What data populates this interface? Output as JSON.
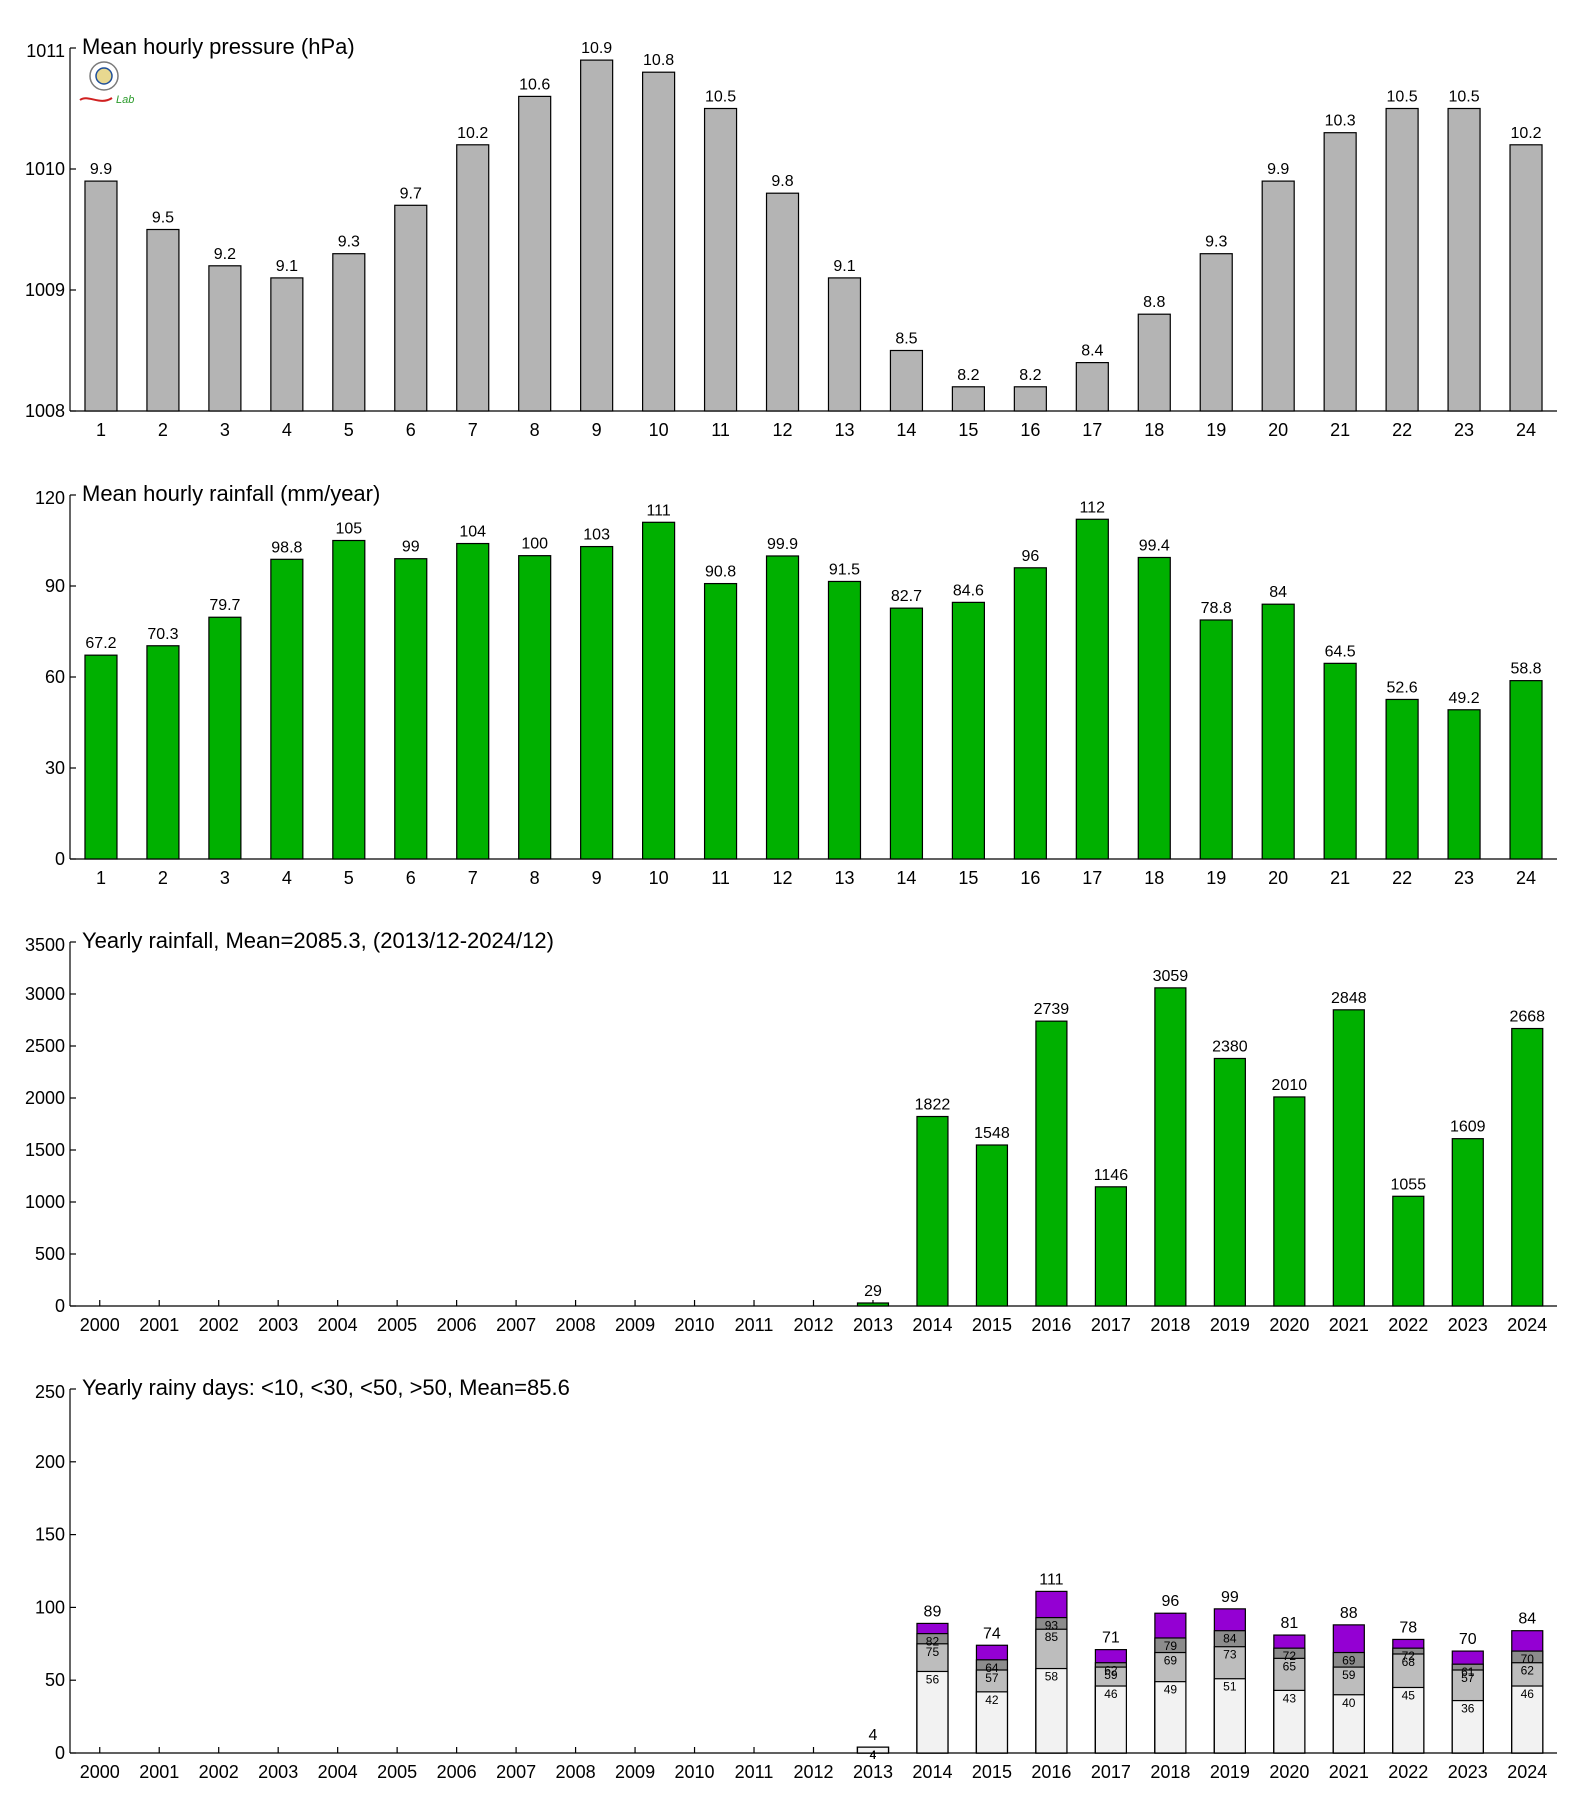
{
  "logo": {
    "text": "Lab"
  },
  "colors": {
    "pressure_bar": "#b4b4b4",
    "rain_bar": "#00b000",
    "days_lt10": "#f2f2f2",
    "days_lt30": "#bdbdbd",
    "days_lt50": "#8c8c8c",
    "days_gt50": "#9400d3"
  },
  "chart_data": [
    {
      "type": "bar",
      "title": "Mean hourly pressure (hPa)",
      "categories": [
        "1",
        "2",
        "3",
        "4",
        "5",
        "6",
        "7",
        "8",
        "9",
        "10",
        "11",
        "12",
        "13",
        "14",
        "15",
        "16",
        "17",
        "18",
        "19",
        "20",
        "21",
        "22",
        "23",
        "24"
      ],
      "values": [
        1009.9,
        1009.5,
        1009.2,
        1009.1,
        1009.3,
        1009.7,
        1010.2,
        1010.6,
        1010.9,
        1010.8,
        1010.5,
        1009.8,
        1009.1,
        1008.5,
        1008.2,
        1008.2,
        1008.4,
        1008.8,
        1009.3,
        1009.9,
        1010.3,
        1010.5,
        1010.5,
        1010.2
      ],
      "value_labels": [
        "9.9",
        "9.5",
        "9.2",
        "9.1",
        "9.3",
        "9.7",
        "10.2",
        "10.6",
        "10.9",
        "10.8",
        "10.5",
        "9.8",
        "9.1",
        "8.5",
        "8.2",
        "8.2",
        "8.4",
        "8.8",
        "9.3",
        "9.9",
        "10.3",
        "10.5",
        "10.5",
        "10.2"
      ],
      "ylim": [
        1008,
        1011
      ],
      "yticks": [
        1008,
        1009,
        1010,
        1011
      ],
      "xlabel": "",
      "ylabel": "",
      "grid": false
    },
    {
      "type": "bar",
      "title": "Mean hourly rainfall (mm/year)",
      "categories": [
        "1",
        "2",
        "3",
        "4",
        "5",
        "6",
        "7",
        "8",
        "9",
        "10",
        "11",
        "12",
        "13",
        "14",
        "15",
        "16",
        "17",
        "18",
        "19",
        "20",
        "21",
        "22",
        "23",
        "24"
      ],
      "values": [
        67.2,
        70.3,
        79.7,
        98.8,
        105,
        99,
        104,
        100,
        103,
        111,
        90.8,
        99.9,
        91.5,
        82.7,
        84.6,
        96,
        112,
        99.4,
        78.8,
        84,
        64.5,
        52.6,
        49.2,
        58.8
      ],
      "value_labels": [
        "67.2",
        "70.3",
        "79.7",
        "98.8",
        "105",
        "99",
        "104",
        "100",
        "103",
        "111",
        "90.8",
        "99.9",
        "91.5",
        "82.7",
        "84.6",
        "96",
        "112",
        "99.4",
        "78.8",
        "84",
        "64.5",
        "52.6",
        "49.2",
        "58.8"
      ],
      "ylim": [
        0,
        120
      ],
      "yticks": [
        0,
        30,
        60,
        90,
        120
      ],
      "xlabel": "",
      "ylabel": "",
      "grid": false
    },
    {
      "type": "bar",
      "title": "Yearly rainfall, Mean=2085.3, (2013/12-2024/12)",
      "categories": [
        "2000",
        "2001",
        "2002",
        "2003",
        "2004",
        "2005",
        "2006",
        "2007",
        "2008",
        "2009",
        "2010",
        "2011",
        "2012",
        "2013",
        "2014",
        "2015",
        "2016",
        "2017",
        "2018",
        "2019",
        "2020",
        "2021",
        "2022",
        "2023",
        "2024"
      ],
      "values": [
        null,
        null,
        null,
        null,
        null,
        null,
        null,
        null,
        null,
        null,
        null,
        null,
        null,
        29,
        1822,
        1548,
        2739,
        1146,
        3059,
        2380,
        2010,
        2848,
        1055,
        1609,
        2668
      ],
      "value_labels": [
        "",
        "",
        "",
        "",
        "",
        "",
        "",
        "",
        "",
        "",
        "",
        "",
        "",
        "29",
        "1822",
        "1548",
        "2739",
        "1146",
        "3059",
        "2380",
        "2010",
        "2848",
        "1055",
        "1609",
        "2668"
      ],
      "ylim": [
        0,
        3500
      ],
      "yticks": [
        0,
        500,
        1000,
        1500,
        2000,
        2500,
        3000,
        3500
      ],
      "xlabel": "",
      "ylabel": "",
      "grid": false
    },
    {
      "type": "bar",
      "stacked": true,
      "title": "Yearly rainy days: <10, <30, <50, >50, Mean=85.6",
      "categories": [
        "2000",
        "2001",
        "2002",
        "2003",
        "2004",
        "2005",
        "2006",
        "2007",
        "2008",
        "2009",
        "2010",
        "2011",
        "2012",
        "2013",
        "2014",
        "2015",
        "2016",
        "2017",
        "2018",
        "2019",
        "2020",
        "2021",
        "2022",
        "2023",
        "2024"
      ],
      "cumulative": {
        "lt10": [
          null,
          null,
          null,
          null,
          null,
          null,
          null,
          null,
          null,
          null,
          null,
          null,
          null,
          4,
          56,
          42,
          58,
          46,
          49,
          51,
          43,
          40,
          45,
          36,
          46
        ],
        "lt30": [
          null,
          null,
          null,
          null,
          null,
          null,
          null,
          null,
          null,
          null,
          null,
          null,
          null,
          4,
          75,
          57,
          85,
          59,
          69,
          73,
          65,
          59,
          68,
          57,
          62
        ],
        "lt50": [
          null,
          null,
          null,
          null,
          null,
          null,
          null,
          null,
          null,
          null,
          null,
          null,
          null,
          4,
          82,
          64,
          93,
          62,
          79,
          84,
          72,
          69,
          72,
          61,
          70
        ],
        "total": [
          null,
          null,
          null,
          null,
          null,
          null,
          null,
          null,
          null,
          null,
          null,
          null,
          null,
          4,
          89,
          74,
          111,
          71,
          96,
          99,
          81,
          88,
          78,
          70,
          84
        ]
      },
      "ylim": [
        0,
        250
      ],
      "yticks": [
        0,
        50,
        100,
        150,
        200,
        250
      ],
      "xlabel": "",
      "ylabel": "",
      "grid": false
    }
  ]
}
